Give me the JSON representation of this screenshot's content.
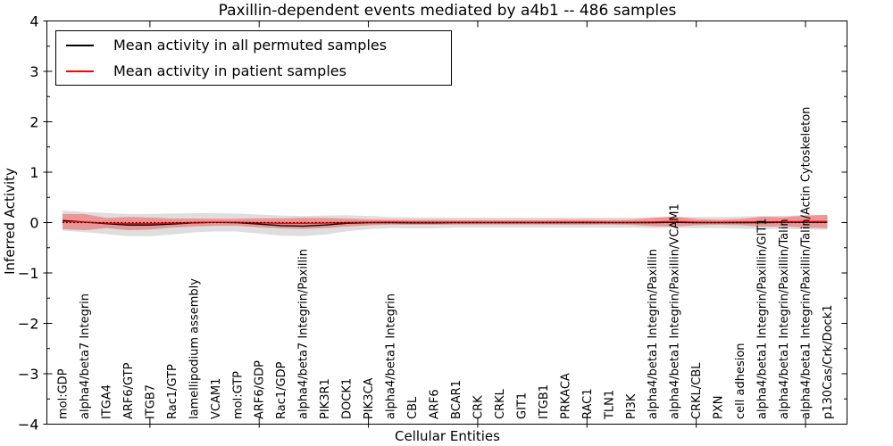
{
  "figure": {
    "title": "Paxillin-dependent events mediated by a4b1 -- 486 samples",
    "xlabel": "Cellular Entities",
    "ylabel": "Inferred Activity"
  },
  "legend": {
    "position": "upper left",
    "items": [
      {
        "label": "Mean activity in all permuted samples",
        "color": "#000000"
      },
      {
        "label": "Mean activity in patient samples",
        "color": "#ff0000"
      }
    ]
  },
  "chart_data": {
    "type": "line",
    "title": "Paxillin-dependent events mediated by a4b1 -- 486 samples",
    "xlabel": "Cellular Entities",
    "ylabel": "Inferred Activity",
    "ylim": [
      -4,
      4
    ],
    "yticks": [
      4,
      3,
      2,
      1,
      0,
      -1,
      -2,
      -3,
      -4
    ],
    "ytick_labels": [
      "4",
      "3",
      "2",
      "1",
      "0",
      "−1",
      "−2",
      "−3",
      "−4"
    ],
    "y_minor_ticks": [
      -3.5,
      -2.5,
      -1.5,
      -0.5,
      0.5,
      1.5,
      2.5,
      3.5
    ],
    "x_major_tick_indices": [
      4,
      9,
      14,
      19,
      24,
      29,
      34
    ],
    "grid": false,
    "legend_position": "upper left",
    "categories": [
      "mol:GDP",
      "alpha4/beta7 Integrin",
      "ITGA4",
      "ARF6/GTP",
      "ITGB7",
      "Rac1/GTP",
      "lamellipodium assembly",
      "VCAM1",
      "mol:GTP",
      "ARF6/GDP",
      "Rac1/GDP",
      "alpha4/beta7 Integrin/Paxillin",
      "PIK3R1",
      "DOCK1",
      "PIK3CA",
      "alpha4/beta1 Integrin",
      "CBL",
      "ARF6",
      "BCAR1",
      "CRK",
      "CRKL",
      "GIT1",
      "ITGB1",
      "PRKACA",
      "RAC1",
      "TLN1",
      "PI3K",
      "alpha4/beta1 Integrin/Paxillin",
      "alpha4/beta1 Integrin/Paxillin/VCAM1",
      "CRKL/CBL",
      "PXN",
      "cell adhesion",
      "alpha4/beta1 Integrin/Paxillin/GIT1",
      "alpha4/beta1 Integrin/Paxillin/Talin",
      "alpha4/beta1 Integrin/Paxillin/Talin/Actin Cytoskeleton",
      "p130Cas/Crk/Dock1"
    ],
    "series": [
      {
        "name": "Mean activity in all permuted samples",
        "color": "#000000",
        "band_fill": "rgba(0,0,0,0.13)",
        "values": [
          0.04,
          0.01,
          -0.02,
          -0.05,
          -0.05,
          -0.03,
          -0.005,
          0.005,
          0.0,
          -0.03,
          -0.06,
          -0.07,
          -0.05,
          -0.015,
          0.0,
          0.0,
          -0.005,
          -0.005,
          0.0,
          0.0,
          0.0,
          0.0,
          0.0,
          0.0,
          0.0,
          0.0,
          0.0,
          0.0,
          0.005,
          0.0,
          0.0,
          0.0,
          0.0,
          0.005,
          0.005,
          0.005
        ],
        "band_halfwidth": [
          0.2,
          0.2,
          0.21,
          0.22,
          0.22,
          0.21,
          0.19,
          0.18,
          0.18,
          0.19,
          0.2,
          0.2,
          0.19,
          0.16,
          0.13,
          0.11,
          0.11,
          0.11,
          0.1,
          0.1,
          0.1,
          0.1,
          0.1,
          0.1,
          0.1,
          0.1,
          0.1,
          0.11,
          0.11,
          0.11,
          0.11,
          0.12,
          0.13,
          0.13,
          0.14,
          0.15
        ]
      },
      {
        "name": "Mean activity in patient samples",
        "color": "#ff0000",
        "band_fill": "rgba(255,0,0,0.32)",
        "values": [
          0.02,
          0.01,
          -0.01,
          -0.02,
          -0.02,
          -0.01,
          0.0,
          0.005,
          0.005,
          -0.005,
          -0.015,
          -0.015,
          -0.01,
          0.0,
          0.005,
          0.01,
          0.005,
          0.005,
          0.005,
          0.005,
          0.005,
          0.005,
          0.005,
          0.008,
          0.008,
          0.005,
          0.005,
          0.01,
          0.02,
          0.008,
          0.005,
          0.01,
          0.015,
          0.015,
          0.02,
          0.02
        ],
        "band_halfwidth": [
          0.15,
          0.16,
          0.1,
          0.13,
          0.12,
          0.09,
          0.08,
          0.07,
          0.07,
          0.09,
          0.1,
          0.11,
          0.1,
          0.08,
          0.06,
          0.05,
          0.05,
          0.05,
          0.045,
          0.045,
          0.045,
          0.045,
          0.045,
          0.05,
          0.05,
          0.045,
          0.05,
          0.08,
          0.1,
          0.06,
          0.05,
          0.06,
          0.1,
          0.09,
          0.12,
          0.13
        ]
      }
    ],
    "zero_line": {
      "value": 0,
      "style": "dotted",
      "color": "#000000"
    }
  }
}
